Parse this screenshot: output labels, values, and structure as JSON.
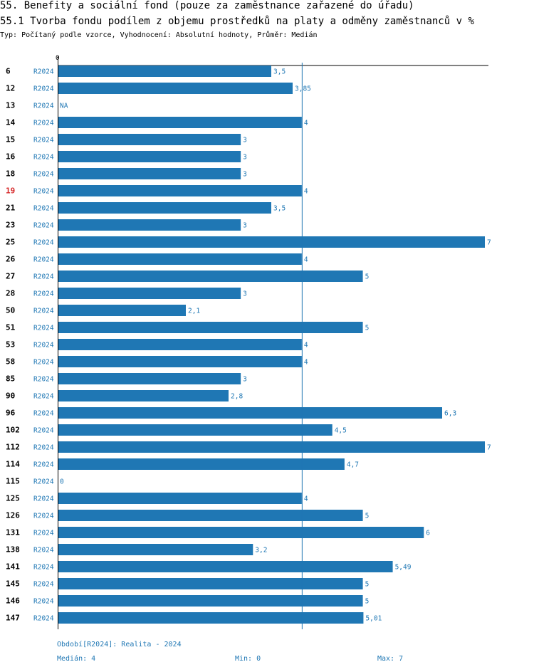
{
  "header": {
    "title": "55. Benefity a sociální fond (pouze za zaměstnance zařazené do úřadu)",
    "subtitle": "55.1 Tvorba fondu podílem z objemu prostředků na platy a odměny zaměstnanců v %",
    "description": "Typ: Počítaný podle vzorce, Vyhodnocení: Absolutní hodnoty, Průměr: Medián"
  },
  "chart_data": {
    "type": "bar",
    "orientation": "horizontal",
    "xlim": [
      0,
      7
    ],
    "zero_label": "0",
    "median_line": 4,
    "highlight_color": "#d62728",
    "bar_color": "#1f77b4",
    "rows": [
      {
        "id": "6",
        "period": "R2024",
        "value": 3.5,
        "label": "3,5",
        "highlight": false
      },
      {
        "id": "12",
        "period": "R2024",
        "value": 3.85,
        "label": "3,85",
        "highlight": false
      },
      {
        "id": "13",
        "period": "R2024",
        "value": null,
        "label": "NA",
        "highlight": false
      },
      {
        "id": "14",
        "period": "R2024",
        "value": 4,
        "label": "4",
        "highlight": false
      },
      {
        "id": "15",
        "period": "R2024",
        "value": 3,
        "label": "3",
        "highlight": false
      },
      {
        "id": "16",
        "period": "R2024",
        "value": 3,
        "label": "3",
        "highlight": false
      },
      {
        "id": "18",
        "period": "R2024",
        "value": 3,
        "label": "3",
        "highlight": false
      },
      {
        "id": "19",
        "period": "R2024",
        "value": 4,
        "label": "4",
        "highlight": true
      },
      {
        "id": "21",
        "period": "R2024",
        "value": 3.5,
        "label": "3,5",
        "highlight": false
      },
      {
        "id": "23",
        "period": "R2024",
        "value": 3,
        "label": "3",
        "highlight": false
      },
      {
        "id": "25",
        "period": "R2024",
        "value": 7,
        "label": "7",
        "highlight": false
      },
      {
        "id": "26",
        "period": "R2024",
        "value": 4,
        "label": "4",
        "highlight": false
      },
      {
        "id": "27",
        "period": "R2024",
        "value": 5,
        "label": "5",
        "highlight": false
      },
      {
        "id": "28",
        "period": "R2024",
        "value": 3,
        "label": "3",
        "highlight": false
      },
      {
        "id": "50",
        "period": "R2024",
        "value": 2.1,
        "label": "2,1",
        "highlight": false
      },
      {
        "id": "51",
        "period": "R2024",
        "value": 5,
        "label": "5",
        "highlight": false
      },
      {
        "id": "53",
        "period": "R2024",
        "value": 4,
        "label": "4",
        "highlight": false
      },
      {
        "id": "58",
        "period": "R2024",
        "value": 4,
        "label": "4",
        "highlight": false
      },
      {
        "id": "85",
        "period": "R2024",
        "value": 3,
        "label": "3",
        "highlight": false
      },
      {
        "id": "90",
        "period": "R2024",
        "value": 2.8,
        "label": "2,8",
        "highlight": false
      },
      {
        "id": "96",
        "period": "R2024",
        "value": 6.3,
        "label": "6,3",
        "highlight": false
      },
      {
        "id": "102",
        "period": "R2024",
        "value": 4.5,
        "label": "4,5",
        "highlight": false
      },
      {
        "id": "112",
        "period": "R2024",
        "value": 7,
        "label": "7",
        "highlight": false
      },
      {
        "id": "114",
        "period": "R2024",
        "value": 4.7,
        "label": "4,7",
        "highlight": false
      },
      {
        "id": "115",
        "period": "R2024",
        "value": 0,
        "label": "0",
        "highlight": false
      },
      {
        "id": "125",
        "period": "R2024",
        "value": 4,
        "label": "4",
        "highlight": false
      },
      {
        "id": "126",
        "period": "R2024",
        "value": 5,
        "label": "5",
        "highlight": false
      },
      {
        "id": "131",
        "period": "R2024",
        "value": 6,
        "label": "6",
        "highlight": false
      },
      {
        "id": "138",
        "period": "R2024",
        "value": 3.2,
        "label": "3,2",
        "highlight": false
      },
      {
        "id": "141",
        "period": "R2024",
        "value": 5.49,
        "label": "5,49",
        "highlight": false
      },
      {
        "id": "145",
        "period": "R2024",
        "value": 5,
        "label": "5",
        "highlight": false
      },
      {
        "id": "146",
        "period": "R2024",
        "value": 5,
        "label": "5",
        "highlight": false
      },
      {
        "id": "147",
        "period": "R2024",
        "value": 5.01,
        "label": "5,01",
        "highlight": false
      }
    ]
  },
  "footer": {
    "period_legend": "Období[R2024]: Realita - 2024",
    "median": "Medián: 4",
    "min": "Min: 0",
    "max": "Max: 7"
  }
}
